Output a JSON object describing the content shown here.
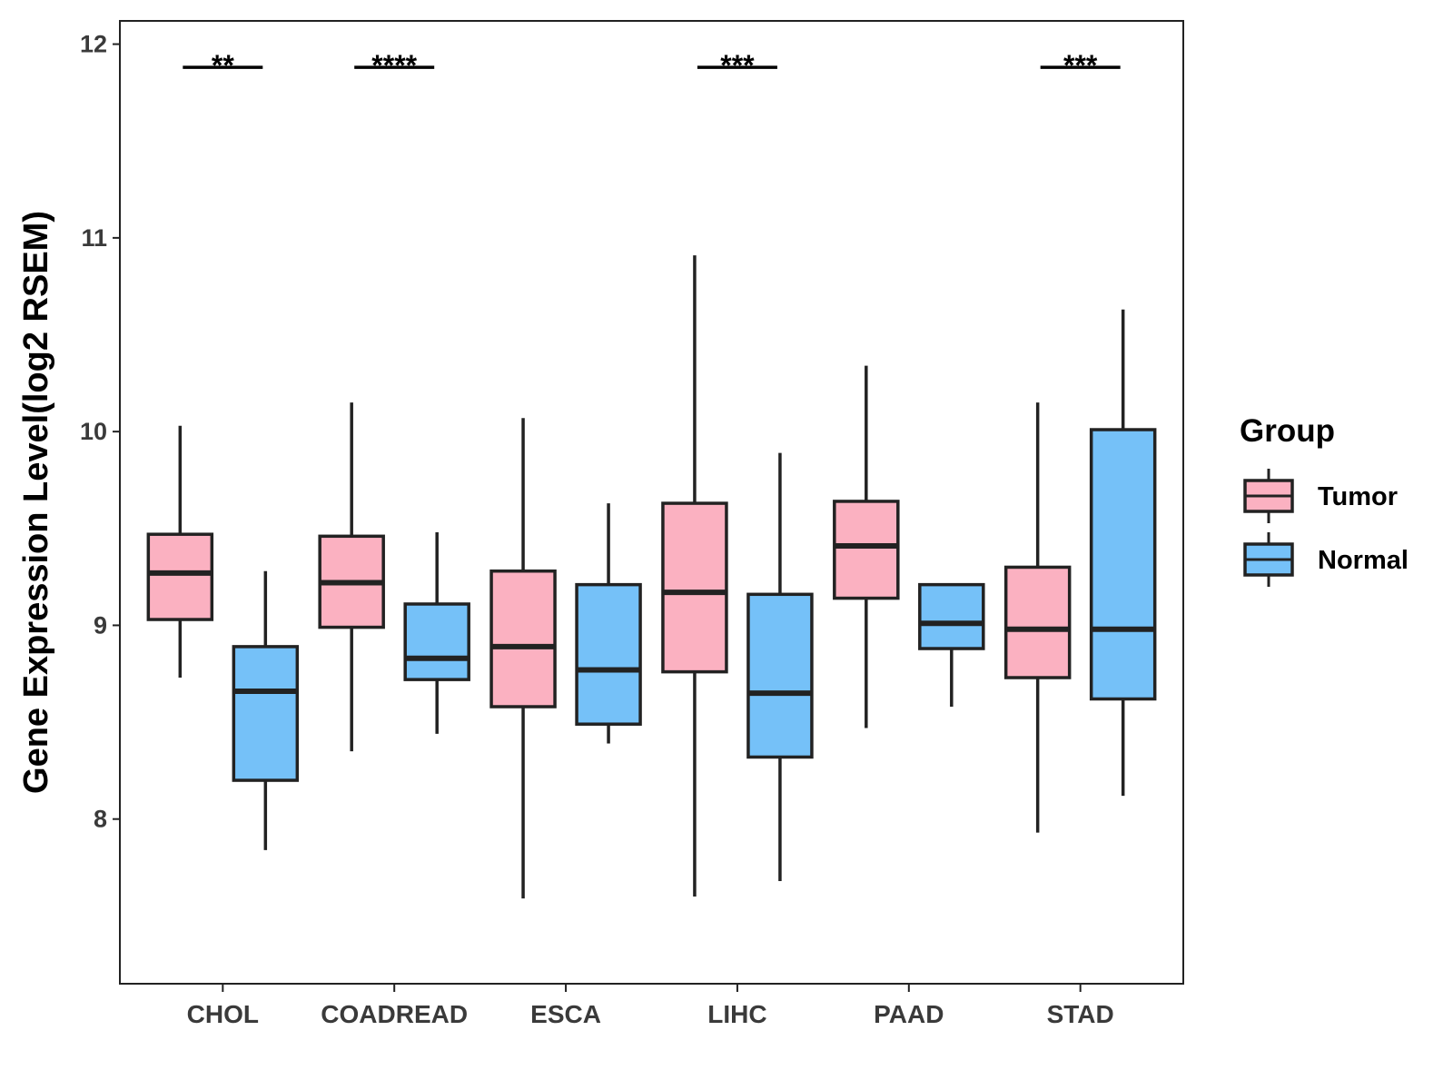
{
  "chart_data": {
    "type": "boxplot",
    "title": "",
    "xlabel": "",
    "ylabel": "Gene Expression Level(log2 RSEM)",
    "ylim": [
      7.15,
      12.12
    ],
    "yticks": [
      8,
      9,
      10,
      11,
      12
    ],
    "grid": false,
    "categories": [
      "CHOL",
      "COADREAD",
      "ESCA",
      "LIHC",
      "PAAD",
      "STAD"
    ],
    "legend": {
      "title": "Group",
      "position": "right",
      "entries": [
        {
          "name": "Tumor",
          "color": "#FBB1C1"
        },
        {
          "name": "Normal",
          "color": "#75C1F8"
        }
      ]
    },
    "series": [
      {
        "name": "Tumor",
        "color": "#FBB1C1",
        "boxes": [
          {
            "category": "CHOL",
            "min": 8.73,
            "q1": 9.03,
            "median": 9.27,
            "q3": 9.47,
            "max": 10.03
          },
          {
            "category": "COADREAD",
            "min": 8.35,
            "q1": 8.99,
            "median": 9.22,
            "q3": 9.46,
            "max": 10.15
          },
          {
            "category": "ESCA",
            "min": 7.59,
            "q1": 8.58,
            "median": 8.89,
            "q3": 9.28,
            "max": 10.07
          },
          {
            "category": "LIHC",
            "min": 7.6,
            "q1": 8.76,
            "median": 9.17,
            "q3": 9.63,
            "max": 10.91
          },
          {
            "category": "PAAD",
            "min": 8.47,
            "q1": 9.14,
            "median": 9.41,
            "q3": 9.64,
            "max": 10.34
          },
          {
            "category": "STAD",
            "min": 7.93,
            "q1": 8.73,
            "median": 8.98,
            "q3": 9.3,
            "max": 10.15
          }
        ]
      },
      {
        "name": "Normal",
        "color": "#75C1F8",
        "boxes": [
          {
            "category": "CHOL",
            "min": 7.84,
            "q1": 8.2,
            "median": 8.66,
            "q3": 8.89,
            "max": 9.28
          },
          {
            "category": "COADREAD",
            "min": 8.44,
            "q1": 8.72,
            "median": 8.83,
            "q3": 9.11,
            "max": 9.48
          },
          {
            "category": "ESCA",
            "min": 8.39,
            "q1": 8.49,
            "median": 8.77,
            "q3": 9.21,
            "max": 9.63
          },
          {
            "category": "LIHC",
            "min": 7.68,
            "q1": 8.32,
            "median": 8.65,
            "q3": 9.16,
            "max": 9.89
          },
          {
            "category": "PAAD",
            "min": 8.58,
            "q1": 8.88,
            "median": 9.01,
            "q3": 9.21,
            "max": 9.21
          },
          {
            "category": "STAD",
            "min": 8.12,
            "q1": 8.62,
            "median": 8.98,
            "q3": 10.01,
            "max": 10.63
          }
        ]
      }
    ],
    "annotations": [
      {
        "category": "CHOL",
        "label": "**",
        "y": 11.88
      },
      {
        "category": "COADREAD",
        "label": "****",
        "y": 11.88
      },
      {
        "category": "LIHC",
        "label": "***",
        "y": 11.88
      },
      {
        "category": "STAD",
        "label": "***",
        "y": 11.88
      }
    ]
  }
}
